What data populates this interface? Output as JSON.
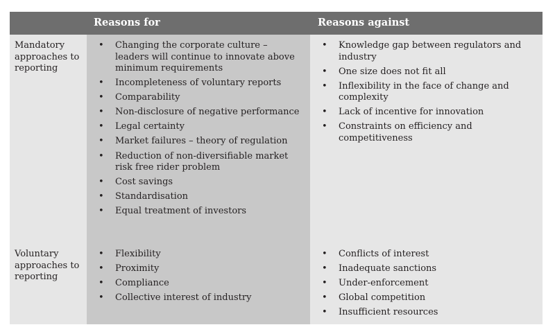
{
  "header": {
    "reasons_for": "Reasons for",
    "reasons_against": "Reasons against"
  },
  "rows": [
    {
      "label": "Mandatory approaches to reporting",
      "for": [
        "Changing the corporate culture – leaders will continue to innovate above minimum requirements",
        "Incompleteness of voluntary reports",
        "Comparability",
        "Non-disclosure of negative performance",
        "Legal certainty",
        "Market failures – theory of regulation",
        "Reduction of non-diversifiable market risk free rider problem",
        "Cost savings",
        "Standardisation",
        "Equal treatment of investors"
      ],
      "against": [
        "Knowledge gap between regulators and industry",
        "One size does not fit all",
        "Inflexibility in the face of change and complexity",
        "Lack of incentive for innovation",
        "Constraints on efficiency and competitiveness"
      ]
    },
    {
      "label": "Voluntary approaches to reporting",
      "for": [
        "Flexibility",
        "Proximity",
        "Compliance",
        "Collective interest of industry"
      ],
      "against": [
        "Conflicts of interest",
        "Inadequate sanctions",
        "Under-enforcement",
        "Global competition",
        "Insufficient resources"
      ]
    }
  ]
}
